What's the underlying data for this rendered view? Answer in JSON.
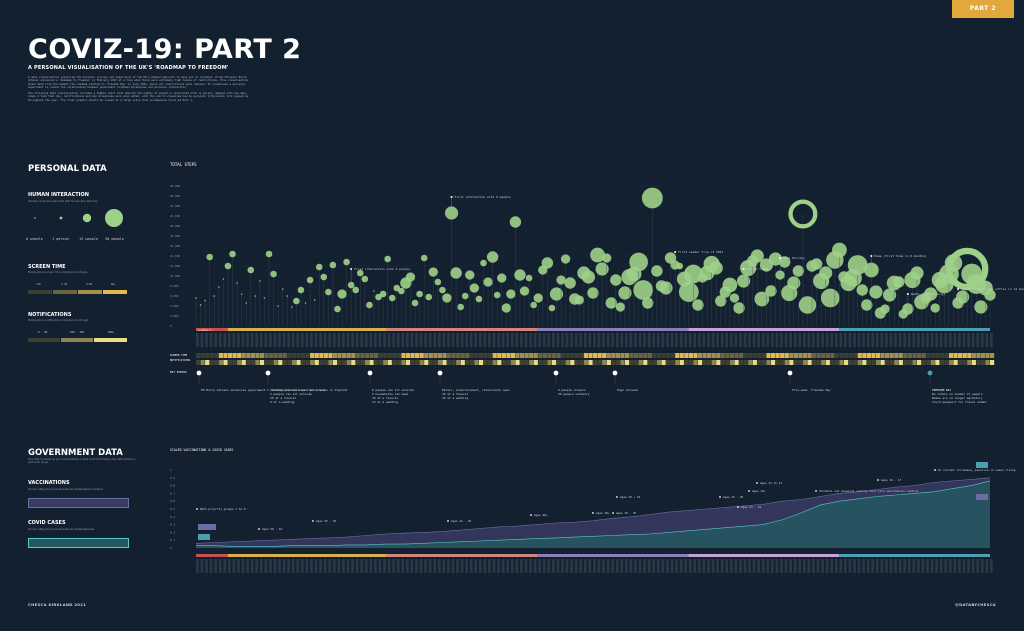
{
  "badge": "PART 2",
  "title": "COVIZ-19: PART 2",
  "subtitle": "A PERSONAL VISUALISATION OF THE UK'S 'ROADMAP TO FREEDOM'",
  "intro_1": "A data visualisation exploring the personal journey and experience of the UK's phased approach to ease out of lockdown. Prime Minister Boris Johnson announced a 'Roadmap to Freedom' in February 2021 at a time when there were extremely high levels of restrictions. This visualisation shows data from the moment the roadmap started to 'Freedom Day' in July 2021, where all restrictions were removed. It visualises a personal experiment to reveal the relationship between government lockdown milestones and personal interaction.",
  "intro_2": "The following data visualisation includes a bubble chart that depicts the number of people I interacted with in person, mapped onto how many steps I took that day, notifications and key milestones were also added, with the aim to visualise how my personal life/social life opened up throughout the year. The final graphic should be viewed at a large scale that accompanies Coviz-19 Part 1.",
  "personal": {
    "heading": "PERSONAL DATA",
    "human_interaction": "HUMAN INTERACTION",
    "human_desc": "Number of people interacted with face-to-face that day",
    "bubble_legend": [
      "0 people",
      "1 person",
      "15 people",
      "30 people"
    ],
    "screen_time": "SCREEN TIME",
    "screen_desc": "Mobile phone screen time collected via iOS app",
    "screen_legend": [
      "<1h",
      "1-3h",
      "3-5h",
      "5h+"
    ],
    "notifications": "NOTIFICATIONS",
    "notif_desc": "Mobile phone notifications collected via iOS app",
    "notif_legend": [
      "0 - 99",
      "100 - 199",
      "200+"
    ]
  },
  "government": {
    "heading": "GOVERNMENT DATA",
    "desc": "This data is scaled up and independently scaled to fit the timeline, the data reflects a particular range.",
    "vaccinations": "VACCINATIONS",
    "vacc_source": "Source: https://coronavirus.data.gov.uk/details/vaccinations",
    "covid_cases": "COVID CASES",
    "cases_source": "Source: https://coronavirus.data.gov.uk/details/cases"
  },
  "footer_left": "CHESCA KIRKLAND 2021",
  "footer_right": "@DATABYCHESCA",
  "row_labels": {
    "screen": "SCREEN TIME",
    "notif": "NOTIFICATIONS",
    "key_events": "KEY EVENTS"
  },
  "colors": {
    "bg": "#132030",
    "bubble": "#9fd08a",
    "phase1": "#c7514e",
    "phase2": "#d7b04a",
    "phase3": "#d2847e",
    "phase4": "#8a7fb6",
    "phase5": "#c6a2d8",
    "phase6": "#4c9fb0",
    "vacc": "#3a3b63",
    "cases": "#3d8a93",
    "accent": "#e3a83b"
  },
  "events": [
    "PM Boris Johnson announces government's roadmap plan to ease restrictions in England",
    "Children/students back to school\n2 people can sit outside\n30 at a funeral\n6 at a wedding",
    "6 people can sit outside\n2 households can meet\n30 at a funeral\n15 at a wedding",
    "Retail, entertainment, restaurants open\n30 at a funeral\n30 at a wedding",
    "6 people indoors\n30 people outdoors",
    "Hugs allowed",
    "Five-week 'freedom day'",
    "FREEDOM DAY\nNo limits on number of people\nMasks are no longer mandatory\nCovid passport for travel added"
  ],
  "vacc_events": [
    "DOCS priority groups 1 to 9",
    "Ages 50 - 54",
    "Ages 55 - 59",
    "Ages 41 - 45",
    "Ages 40+",
    "Ages 38+",
    "Ages 30 + 34",
    "Ages 30 - 35",
    "Ages 25 - 29",
    "Ages 21 - 22",
    "Ages 23 to 24",
    "Ages 18+",
    "Ages 16 - 17",
    "Students and shopping centres turn into vaccination centres",
    "At current increases, positive in cases rising"
  ],
  "chart_data": {
    "type": "scatter",
    "title": "TOTAL STEPS",
    "ylim": [
      0,
      30000
    ],
    "y_ticks": [
      0,
      2000,
      4000,
      6000,
      8000,
      10000,
      12000,
      14000,
      16000,
      18000,
      20000,
      22000,
      24000,
      26000,
      28000
    ],
    "annotations": [
      "First interaction with 2 people",
      "First interaction with 6 people",
      "First Leader trip of 2021",
      "Mother's BBQ",
      "Bank Holiday",
      "Home (first time in 6 months)",
      "Wedding (attending)",
      "Three times in the office in 12 months",
      "First Covid Vaccine",
      "Wedding (photographing)",
      "Wedding (photographing) First event of 110",
      "Self Isolating"
    ],
    "series": [
      {
        "name": "steps",
        "values": [
          5600,
          4200,
          5100,
          13800,
          6000,
          7800,
          9400,
          12000,
          14400,
          8600,
          6400,
          4600,
          11200,
          6000,
          9000,
          5600,
          14400,
          10400,
          4000,
          7400,
          6000,
          3800,
          5000,
          7200,
          4600,
          9200,
          5200,
          11800,
          9800,
          6800,
          12200,
          3400,
          6400,
          12800,
          8200,
          7200,
          10600,
          9400,
          4200,
          7000,
          5800,
          6400,
          13400,
          5600,
          7600,
          7000,
          8600,
          9800,
          4600,
          6400,
          13600,
          5800,
          10800,
          8800,
          7200,
          5600,
          22600,
          10600,
          3800,
          6000,
          10200,
          7600,
          5400,
          12600,
          8800,
          13800,
          6200,
          9600,
          3600,
          6400,
          20800,
          10200,
          7000,
          9600,
          4200,
          5600,
          11200,
          12600,
          3600,
          6400,
          9200,
          13400,
          8600,
          5400,
          5200,
          10600,
          9800,
          6600,
          14200,
          11400,
          13600,
          4600,
          9200,
          3800,
          6600,
          9800,
          10400,
          12800,
          7200,
          4600,
          25600,
          11000,
          8000,
          7600,
          13600,
          12200,
          12000,
          9400,
          6800,
          10400,
          4200,
          9600,
          10600,
          12400,
          11600,
          5000,
          6800,
          8200,
          5600,
          3600,
          9000,
          11600,
          13000,
          14000,
          5400,
          12200,
          7000,
          13400,
          10200,
          12800,
          6600,
          8600,
          11000,
          22400,
          4200,
          12000,
          12400,
          9000,
          10600,
          5600,
          13200,
          15200,
          9800,
          8600,
          9600,
          12200,
          7200,
          4200,
          11200,
          6800,
          2600,
          3400,
          6200,
          8600,
          8800,
          2400,
          3400,
          9200,
          10600,
          4800,
          5600,
          6400,
          3600,
          9200,
          8400,
          10400,
          12600,
          4600,
          5800,
          11400,
          10400,
          8400,
          3800,
          7600,
          6200
        ]
      },
      {
        "name": "people",
        "values": [
          0,
          0,
          0,
          1,
          0,
          0,
          0,
          1,
          1,
          0,
          0,
          0,
          1,
          0,
          0,
          0,
          1,
          1,
          0,
          0,
          0,
          0,
          1,
          1,
          0,
          1,
          0,
          1,
          1,
          1,
          1,
          1,
          2,
          1,
          1,
          1,
          1,
          1,
          1,
          0,
          1,
          1,
          1,
          1,
          1,
          1,
          3,
          2,
          1,
          1,
          1,
          1,
          2,
          1,
          1,
          2,
          4,
          3,
          1,
          1,
          2,
          2,
          1,
          1,
          2,
          3,
          1,
          2,
          2,
          2,
          3,
          3,
          2,
          1,
          1,
          2,
          2,
          3,
          1,
          4,
          2,
          2,
          3,
          3,
          2,
          4,
          4,
          3,
          5,
          4,
          2,
          3,
          3,
          2,
          4,
          6,
          5,
          8,
          9,
          3,
          10,
          3,
          3,
          4,
          3,
          2,
          1,
          5,
          9,
          8,
          3,
          2,
          5,
          6,
          4,
          3,
          3,
          5,
          2,
          3,
          4,
          6,
          3,
          4,
          5,
          4,
          3,
          4,
          2,
          3,
          6,
          4,
          3,
          14,
          7,
          3,
          3,
          6,
          4,
          8,
          7,
          5,
          3,
          6,
          7,
          9,
          3,
          3,
          5,
          4,
          3,
          2,
          4,
          5,
          3,
          2,
          3,
          6,
          4,
          5,
          3,
          4,
          2,
          6,
          8,
          9,
          7,
          3,
          4,
          30,
          10,
          9,
          4,
          5,
          3
        ]
      }
    ],
    "phases": [
      "Lockdown 3",
      "Step 1",
      "Step 1b",
      "Step 2",
      "Step 3",
      "Delay",
      "Step 4"
    ]
  },
  "vacc_chart": {
    "title": "SCALED VACCINATIONS & COVID CASES",
    "ylim": [
      0,
      1
    ],
    "y_ticks": [
      0,
      0.1,
      0.2,
      0.3,
      0.4,
      0.5,
      0.6,
      0.7,
      0.8,
      0.9,
      1
    ],
    "vaccinations": [
      0.06,
      0.07,
      0.08,
      0.09,
      0.1,
      0.11,
      0.12,
      0.13,
      0.14,
      0.16,
      0.18,
      0.19,
      0.2,
      0.21,
      0.23,
      0.25,
      0.27,
      0.28,
      0.3,
      0.32,
      0.33,
      0.35,
      0.38,
      0.4,
      0.43,
      0.46,
      0.48,
      0.5,
      0.52,
      0.54,
      0.56,
      0.6,
      0.62,
      0.66,
      0.7,
      0.72,
      0.75,
      0.78,
      0.8,
      0.84,
      0.86,
      0.88,
      0.9
    ],
    "cases": [
      0.03,
      0.03,
      0.02,
      0.02,
      0.02,
      0.03,
      0.03,
      0.03,
      0.04,
      0.04,
      0.05,
      0.05,
      0.06,
      0.07,
      0.08,
      0.09,
      0.1,
      0.11,
      0.12,
      0.13,
      0.14,
      0.15,
      0.16,
      0.17,
      0.18,
      0.2,
      0.22,
      0.24,
      0.26,
      0.28,
      0.3,
      0.36,
      0.45,
      0.55,
      0.6,
      0.63,
      0.66,
      0.68,
      0.7,
      0.72,
      0.76,
      0.8,
      0.86
    ]
  }
}
